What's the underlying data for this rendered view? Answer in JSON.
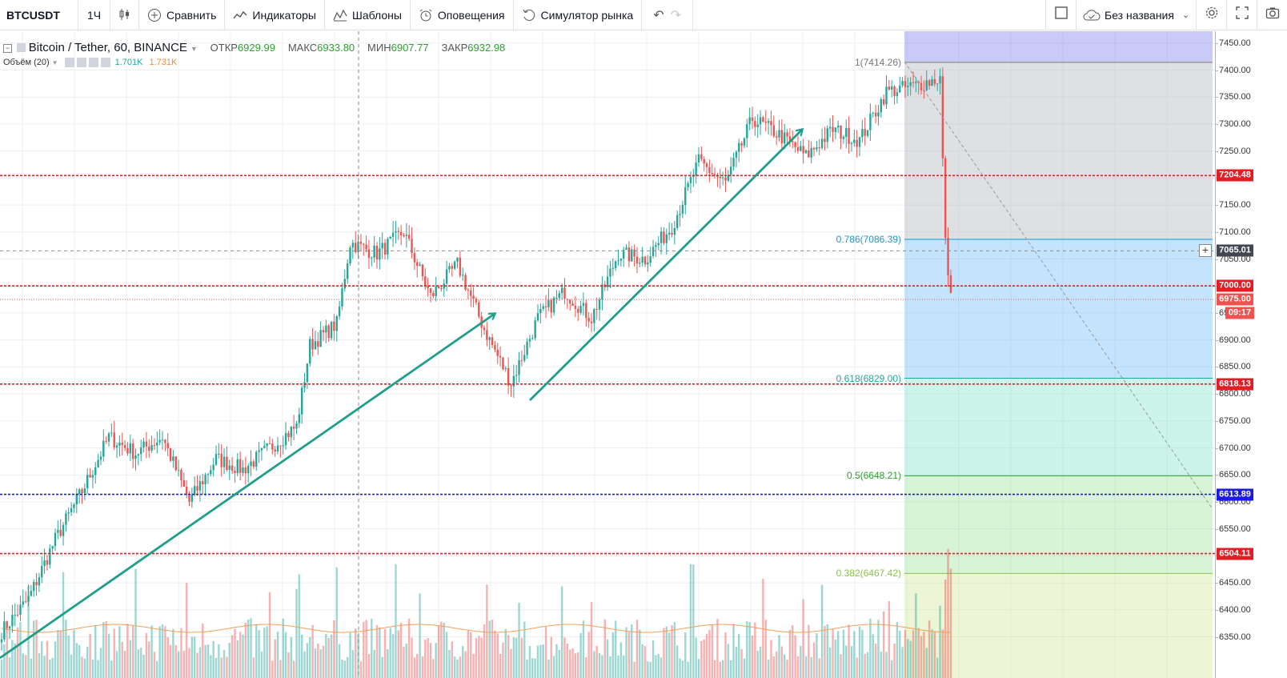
{
  "toolbar": {
    "symbol": "BTCUSDT",
    "interval": "1Ч",
    "compare": "Сравнить",
    "indicators": "Индикаторы",
    "templates": "Шаблоны",
    "alerts": "Оповещения",
    "simulator": "Симулятор рынка",
    "layout_name": "Без названия"
  },
  "legend": {
    "title": "Bitcoin / Tether, 60, BINANCE",
    "open_label": "ОТКР",
    "open": "6929.99",
    "high_label": "МАКС",
    "high": "6933.80",
    "low_label": "МИН",
    "low": "6907.77",
    "close_label": "ЗАКР",
    "close": "6932.98",
    "volume_label": "Объём (20)",
    "volume_value": "1.701K",
    "volume_ma": "1.731K"
  },
  "colors": {
    "up": "#26a69a",
    "down": "#ef5350",
    "trend": "#1f9e89",
    "hline_red": "#e51c23",
    "hline_blue": "#1a1ae6"
  },
  "price_axis": {
    "ticks": [
      "7450.00",
      "7400.00",
      "7350.00",
      "7300.00",
      "7250.00",
      "7200.00",
      "7150.00",
      "7100.00",
      "7050.00",
      "7000.00",
      "6950.00",
      "6900.00",
      "6850.00",
      "6800.00",
      "6750.00",
      "6700.00",
      "6650.00",
      "6600.00",
      "6550.00",
      "6500.00",
      "6450.00",
      "6400.00",
      "6350.00"
    ],
    "tags": [
      {
        "price": 7204.48,
        "label": "7204.48",
        "color": "#e51c23"
      },
      {
        "price": 7065.01,
        "label": "7065.01",
        "color": "#434651"
      },
      {
        "price": 7000.0,
        "label": "7000.00",
        "color": "#e51c23"
      },
      {
        "price": 6975.0,
        "label": "6975.00",
        "color": "#ef5350"
      },
      {
        "price": 6818.13,
        "label": "6818.13",
        "color": "#e51c23"
      },
      {
        "price": 6613.89,
        "label": "6613.89",
        "color": "#1a1ae6"
      },
      {
        "price": 6504.11,
        "label": "6504.11",
        "color": "#e51c23"
      }
    ],
    "countdown": "09:17"
  },
  "horizontal_lines": [
    {
      "price": 7204.48,
      "color": "#e51c23"
    },
    {
      "price": 7000.0,
      "color": "#e51c23"
    },
    {
      "price": 6818.13,
      "color": "#e51c23"
    },
    {
      "price": 6613.89,
      "color": "#1a1ae6"
    },
    {
      "price": 6504.11,
      "color": "#e51c23"
    }
  ],
  "fibonacci": [
    {
      "label": "1(7414.26)",
      "price": 7414.26,
      "color": "#777777"
    },
    {
      "label": "0.786(7086.39)",
      "price": 7086.39,
      "color": "#2196c8"
    },
    {
      "label": "0.618(6829.00)",
      "price": 6829.0,
      "color": "#26a69a"
    },
    {
      "label": "0.5(6648.21)",
      "price": 6648.21,
      "color": "#2ca02c"
    },
    {
      "label": "0.382(6467.42)",
      "price": 6467.42,
      "color": "#8bc34a"
    }
  ],
  "chart_data": {
    "type": "candlestick",
    "approx_close_path": [
      {
        "bar": 0,
        "price": 6360
      },
      {
        "bar": 10,
        "price": 6420
      },
      {
        "bar": 20,
        "price": 6530
      },
      {
        "bar": 30,
        "price": 6620
      },
      {
        "bar": 40,
        "price": 6720
      },
      {
        "bar": 50,
        "price": 6690
      },
      {
        "bar": 60,
        "price": 6720
      },
      {
        "bar": 70,
        "price": 6600
      },
      {
        "bar": 80,
        "price": 6680
      },
      {
        "bar": 90,
        "price": 6660
      },
      {
        "bar": 100,
        "price": 6700
      },
      {
        "bar": 110,
        "price": 6740
      },
      {
        "bar": 115,
        "price": 6890
      },
      {
        "bar": 125,
        "price": 6930
      },
      {
        "bar": 130,
        "price": 7080
      },
      {
        "bar": 140,
        "price": 7060
      },
      {
        "bar": 150,
        "price": 7100
      },
      {
        "bar": 160,
        "price": 6980
      },
      {
        "bar": 170,
        "price": 7040
      },
      {
        "bar": 180,
        "price": 6920
      },
      {
        "bar": 190,
        "price": 6820
      },
      {
        "bar": 200,
        "price": 6940
      },
      {
        "bar": 210,
        "price": 6990
      },
      {
        "bar": 220,
        "price": 6940
      },
      {
        "bar": 230,
        "price": 7060
      },
      {
        "bar": 240,
        "price": 7050
      },
      {
        "bar": 250,
        "price": 7110
      },
      {
        "bar": 260,
        "price": 7230
      },
      {
        "bar": 270,
        "price": 7190
      },
      {
        "bar": 280,
        "price": 7310
      },
      {
        "bar": 290,
        "price": 7280
      },
      {
        "bar": 300,
        "price": 7240
      },
      {
        "bar": 310,
        "price": 7290
      },
      {
        "bar": 320,
        "price": 7270
      },
      {
        "bar": 330,
        "price": 7360
      },
      {
        "bar": 340,
        "price": 7370
      },
      {
        "bar": 350,
        "price": 7385
      },
      {
        "bar": 352,
        "price": 7080
      },
      {
        "bar": 354,
        "price": 6975
      }
    ]
  }
}
